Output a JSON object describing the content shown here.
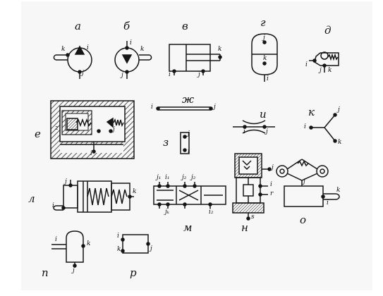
{
  "figure": {
    "panels": [
      {
        "id": "a",
        "label": "а",
        "ports": [
          "i",
          "j",
          "k"
        ]
      },
      {
        "id": "b",
        "label": "б",
        "ports": [
          "i",
          "j",
          "k"
        ]
      },
      {
        "id": "v",
        "label": "в",
        "ports": [
          "i",
          "j",
          "k"
        ]
      },
      {
        "id": "g",
        "label": "г",
        "ports": [
          "i",
          "j",
          "k"
        ]
      },
      {
        "id": "d",
        "label": "д",
        "ports": [
          "i",
          "j",
          "k"
        ]
      },
      {
        "id": "e",
        "label": "е",
        "ports": [
          "z",
          "i",
          "j"
        ]
      },
      {
        "id": "zh",
        "label": "ж",
        "ports": [
          "i",
          "j"
        ]
      },
      {
        "id": "z",
        "label": "з",
        "ports": [
          "i",
          "j"
        ]
      },
      {
        "id": "i",
        "label": "и",
        "ports": [
          "i",
          "j"
        ]
      },
      {
        "id": "k",
        "label": "к",
        "ports": [
          "i",
          "j",
          "k"
        ]
      },
      {
        "id": "l",
        "label": "л",
        "ports": [
          "i",
          "j",
          "k"
        ]
      },
      {
        "id": "m",
        "label": "м",
        "ports": [
          "j₁",
          "i₁",
          "j₂",
          "i₂",
          "jₖ",
          "j₂"
        ]
      },
      {
        "id": "n",
        "label": "н",
        "ports": [
          "j",
          "i",
          "r",
          "s"
        ]
      },
      {
        "id": "o",
        "label": "о",
        "ports": [
          "j",
          "i",
          "k"
        ]
      },
      {
        "id": "p",
        "label": "п",
        "ports": [
          "i",
          "k",
          "j"
        ]
      },
      {
        "id": "r",
        "label": "р",
        "ports": [
          "i",
          "k",
          "j"
        ]
      }
    ]
  },
  "colors": {
    "ink": "#151515",
    "sheet": "#f7f7f7",
    "hatch": "#2a2a2a",
    "background": "#ffffff"
  }
}
